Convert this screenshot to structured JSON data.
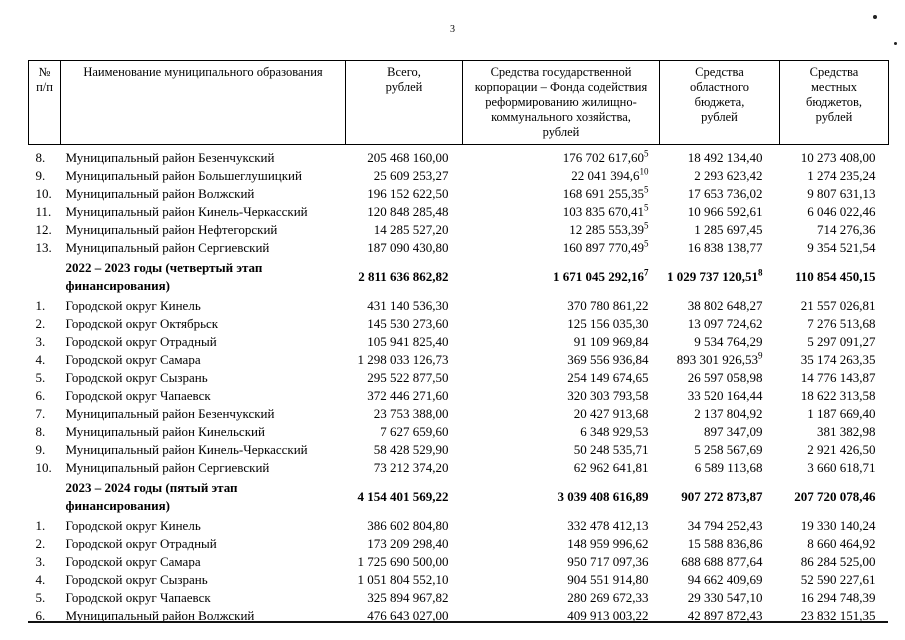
{
  "page": {
    "number": "3"
  },
  "table": {
    "headers": [
      "№\nп/п",
      "Наименование муниципального образования",
      "Всего,\nрублей",
      "Средства государственной\nкорпорации – Фонда содействия\nреформированию жилищно-\nкоммунального хозяйства,\nрублей",
      "Средства\nобластного\nбюджета,\nрублей",
      "Средства\nместных\nбюджетов,\nрублей"
    ],
    "rows": [
      {
        "num": "8.",
        "name": "Муниципальный район Безенчукский",
        "total": "205 468 160,00",
        "fund": "176 702 617,60",
        "fund_sup": "5",
        "reg": "18 492 134,40",
        "loc": "10 273 408,00"
      },
      {
        "num": "9.",
        "name": "Муниципальный район Большеглушицкий",
        "total": "25 609 253,27",
        "fund": "22 041 394,6",
        "fund_sup": "10",
        "reg": "2 293 623,42",
        "loc": "1 274 235,24"
      },
      {
        "num": "10.",
        "name": "Муниципальный район Волжский",
        "total": "196 152 622,50",
        "fund": "168 691 255,35",
        "fund_sup": "5",
        "reg": "17 653 736,02",
        "loc": "9 807 631,13"
      },
      {
        "num": "11.",
        "name": "Муниципальный район Кинель-Черкасский",
        "total": "120 848 285,48",
        "fund": "103 835 670,41",
        "fund_sup": "5",
        "reg": "10 966 592,61",
        "loc": "6 046 022,46"
      },
      {
        "num": "12.",
        "name": "Муниципальный район Нефтегорский",
        "total": "14 285 527,20",
        "fund": "12 285 553,39",
        "fund_sup": "5",
        "reg": "1 285 697,45",
        "loc": "714 276,36"
      },
      {
        "num": "13.",
        "name": "Муниципальный район Сергиевский",
        "total": "187 090 430,80",
        "fund": "160 897 770,49",
        "fund_sup": "5",
        "reg": "16 838 138,77",
        "loc": "9 354 521,54"
      },
      {
        "section": true,
        "name": "2022 – 2023 годы (четвертый этап финансирования)",
        "total": "2 811 636 862,82",
        "fund": "1 671 045 292,16",
        "fund_sup": "7",
        "reg": "1 029 737 120,51",
        "reg_sup": "8",
        "loc": "110 854 450,15"
      },
      {
        "num": "1.",
        "name": "Городской округ Кинель",
        "total": "431 140 536,30",
        "fund": "370 780 861,22",
        "reg": "38 802 648,27",
        "loc": "21 557 026,81"
      },
      {
        "num": "2.",
        "name": "Городской округ Октябрьск",
        "total": "145 530 273,60",
        "fund": "125 156 035,30",
        "reg": "13 097 724,62",
        "loc": "7 276 513,68"
      },
      {
        "num": "3.",
        "name": "Городской округ Отрадный",
        "total": "105 941 825,40",
        "fund": "91 109 969,84",
        "reg": "9 534 764,29",
        "loc": "5 297 091,27"
      },
      {
        "num": "4.",
        "name": "Городской округ Самара",
        "total": "1 298 033 126,73",
        "fund": "369 556 936,84",
        "reg": "893 301 926,53",
        "reg_sup": "9",
        "loc": "35 174 263,35"
      },
      {
        "num": "5.",
        "name": "Городской округ Сызрань",
        "total": "295 522 877,50",
        "fund": "254 149 674,65",
        "reg": "26 597 058,98",
        "loc": "14 776 143,87"
      },
      {
        "num": "6.",
        "name": "Городской округ Чапаевск",
        "total": "372 446 271,60",
        "fund": "320 303 793,58",
        "reg": "33 520 164,44",
        "loc": "18 622 313,58"
      },
      {
        "num": "7.",
        "name": "Муниципальный район Безенчукский",
        "total": "23 753 388,00",
        "fund": "20 427 913,68",
        "reg": "2 137 804,92",
        "loc": "1 187 669,40"
      },
      {
        "num": "8.",
        "name": "Муниципальный район Кинельский",
        "total": "7 627 659,60",
        "fund": "6 348 929,53",
        "reg": "897 347,09",
        "loc": "381 382,98"
      },
      {
        "num": "9.",
        "name": "Муниципальный район Кинель-Черкасский",
        "total": "58 428 529,90",
        "fund": "50 248 535,71",
        "reg": "5 258 567,69",
        "loc": "2 921 426,50"
      },
      {
        "num": "10.",
        "name": "Муниципальный район Сергиевский",
        "total": "73 212 374,20",
        "fund": "62 962 641,81",
        "reg": "6 589 113,68",
        "loc": "3 660 618,71"
      },
      {
        "section": true,
        "name": "2023 – 2024 годы (пятый этап финансирования)",
        "total": "4 154 401 569,22",
        "fund": "3 039 408 616,89",
        "reg": "907 272 873,87",
        "loc": "207 720 078,46"
      },
      {
        "num": "1.",
        "name": "Городской округ Кинель",
        "total": "386 602 804,80",
        "fund": "332 478 412,13",
        "reg": "34 794 252,43",
        "loc": "19 330 140,24"
      },
      {
        "num": "2.",
        "name": "Городской округ Отрадный",
        "total": "173 209 298,40",
        "fund": "148 959 996,62",
        "reg": "15 588 836,86",
        "loc": "8 660 464,92"
      },
      {
        "num": "3.",
        "name": "Городской округ Самара",
        "total": "1 725 690 500,00",
        "fund": "950 717 097,36",
        "reg": "688 688 877,64",
        "loc": "86 284 525,00"
      },
      {
        "num": "4.",
        "name": "Городской округ Сызрань",
        "total": "1 051 804 552,10",
        "fund": "904 551 914,80",
        "reg": "94 662 409,69",
        "loc": "52 590 227,61"
      },
      {
        "num": "5.",
        "name": "Городской округ Чапаевск",
        "total": "325 894 967,82",
        "fund": "280 269 672,33",
        "reg": "29 330 547,10",
        "loc": "16 294 748,39"
      },
      {
        "num": "6.",
        "name": "Муниципальный район Волжский",
        "total": "476 643 027,00",
        "fund": "409 913 003,22",
        "reg": "42 897 872,43",
        "loc": "23 832 151,35"
      }
    ]
  }
}
